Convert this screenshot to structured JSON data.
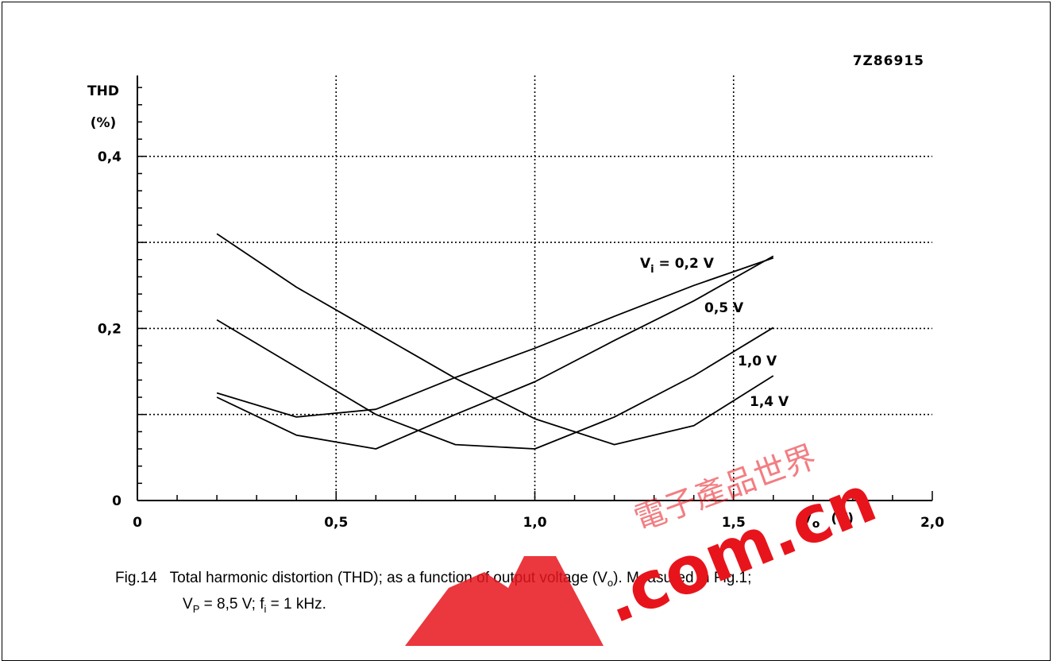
{
  "figure_id": "7Z86915",
  "caption": {
    "line1_label": "Fig.14",
    "line1_text_pre": "Total harmonic distortion (THD); as a function of output voltage (V",
    "line1_sub": "o",
    "line1_text_post": "). Measured in Fig.1;",
    "line2_vp": "V",
    "line2_vp_sub": "P",
    "line2_vp_val": " = 8,5 V; f",
    "line2_fi_sub": "i",
    "line2_fi_val": " = 1 kHz."
  },
  "watermark": {
    "brand_text": ".com.cn",
    "chinese_text": "電子產品世界",
    "color": "#e8141c"
  },
  "chart_data": {
    "type": "line",
    "ylabel_line1": "THD",
    "ylabel_line2": "(%)",
    "xlabel_main": "V",
    "xlabel_sub": "o",
    "xlabel_unit": "(V)",
    "xlim": [
      0,
      2.0
    ],
    "ylim": [
      0,
      0.45
    ],
    "x_ticks": [
      {
        "value": 0,
        "label": "0"
      },
      {
        "value": 0.5,
        "label": "0,5"
      },
      {
        "value": 1.0,
        "label": "1,0"
      },
      {
        "value": 1.5,
        "label": "1,5"
      },
      {
        "value": 2.0,
        "label": "2,0"
      }
    ],
    "y_ticks": [
      {
        "value": 0,
        "label": "0"
      },
      {
        "value": 0.2,
        "label": "0,2"
      },
      {
        "value": 0.4,
        "label": "0,4"
      }
    ],
    "x_grid": [
      0.5,
      1.0,
      1.5
    ],
    "y_grid": [
      0.1,
      0.2,
      0.3,
      0.4
    ],
    "grid": true,
    "series": [
      {
        "name": "V_i = 0,2 V",
        "label_main": "V",
        "label_sub": "i",
        "label_rest": " = 0,2 V",
        "x": [
          0.2,
          0.4,
          0.6,
          0.8,
          1.0,
          1.2,
          1.4,
          1.6
        ],
        "y": [
          0.125,
          0.097,
          0.106,
          0.143,
          0.177,
          0.214,
          0.25,
          0.282
        ]
      },
      {
        "name": "0,5 V",
        "label_main": "0,5 V",
        "label_sub": "",
        "label_rest": "",
        "x": [
          0.2,
          0.4,
          0.6,
          0.8,
          1.0,
          1.2,
          1.4,
          1.6
        ],
        "y": [
          0.12,
          0.076,
          0.06,
          0.1,
          0.138,
          0.186,
          0.232,
          0.284
        ]
      },
      {
        "name": "1,0 V",
        "label_main": "1,0 V",
        "label_sub": "",
        "label_rest": "",
        "x": [
          0.2,
          0.4,
          0.6,
          0.8,
          1.0,
          1.2,
          1.4,
          1.6
        ],
        "y": [
          0.21,
          0.155,
          0.1,
          0.065,
          0.06,
          0.097,
          0.145,
          0.201
        ]
      },
      {
        "name": "1,4 V",
        "label_main": "1,4 V",
        "label_sub": "",
        "label_rest": "",
        "x": [
          0.2,
          0.4,
          0.6,
          0.8,
          1.0,
          1.2,
          1.4,
          1.6
        ],
        "y": [
          0.31,
          0.248,
          0.195,
          0.142,
          0.095,
          0.065,
          0.087,
          0.145
        ]
      }
    ]
  }
}
